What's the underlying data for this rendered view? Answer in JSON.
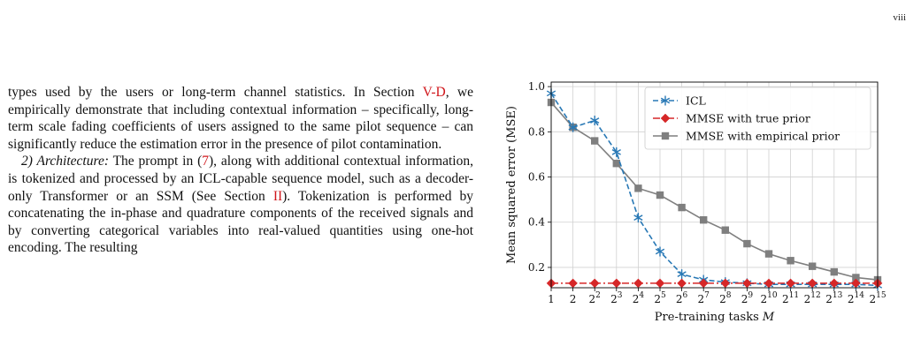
{
  "page_number": "viii",
  "body": {
    "para1": {
      "before": "types used by the users or long-term channel statistics. In Section ",
      "ref": "V-D",
      "after": ", we empirically demonstrate that including contextual information – specifically, long-term scale fading coefficients of users assigned to the same pilot sequence – can significantly reduce the estimation error in the presence of pilot contamination."
    },
    "para2": {
      "heading": "2) Architecture:",
      "text1": " The prompt in (",
      "ref1": "7",
      "text2": "), along with additional contextual information, is tokenized and processed by an ICL-capable sequence model, such as a decoder-only Transformer or an SSM (See Section ",
      "ref2": "II",
      "text3": "). Tokenization is performed by concatenating the in-phase and quadrature components of the received signals and by converting categorical variables into real-valued quantities using one-hot encoding. The resulting"
    }
  },
  "chart_data": {
    "type": "line",
    "x_tick_labels": [
      {
        "base": "1",
        "exp": ""
      },
      {
        "base": "2",
        "exp": ""
      },
      {
        "base": "2",
        "exp": "2"
      },
      {
        "base": "2",
        "exp": "3"
      },
      {
        "base": "2",
        "exp": "4"
      },
      {
        "base": "2",
        "exp": "5"
      },
      {
        "base": "2",
        "exp": "6"
      },
      {
        "base": "2",
        "exp": "7"
      },
      {
        "base": "2",
        "exp": "8"
      },
      {
        "base": "2",
        "exp": "9"
      },
      {
        "base": "2",
        "exp": "10"
      },
      {
        "base": "2",
        "exp": "11"
      },
      {
        "base": "2",
        "exp": "12"
      },
      {
        "base": "2",
        "exp": "13"
      },
      {
        "base": "2",
        "exp": "14"
      },
      {
        "base": "2",
        "exp": "15"
      }
    ],
    "x_log2": [
      0,
      1,
      2,
      3,
      4,
      5,
      6,
      7,
      8,
      9,
      10,
      11,
      12,
      13,
      14,
      15
    ],
    "y_ticks": [
      0.2,
      0.4,
      0.6,
      0.8,
      1.0
    ],
    "y_tick_labels": [
      "0.2",
      "0.4",
      "0.6",
      "0.8",
      "1.0"
    ],
    "ylim": [
      0.11,
      1.02
    ],
    "xlabel": "Pre-training tasks M",
    "xlabel_prefix": "Pre-training tasks ",
    "xlabel_var": "M",
    "ylabel": "Mean squared error (MSE)",
    "grid": true,
    "legend_position": "top-right",
    "series": [
      {
        "name": "ICL",
        "color": "#2878b5",
        "linestyle": "dashed",
        "marker": "star",
        "values": [
          0.97,
          0.82,
          0.85,
          0.71,
          0.42,
          0.27,
          0.17,
          0.145,
          0.135,
          0.13,
          0.125,
          0.125,
          0.125,
          0.125,
          0.125,
          0.12
        ]
      },
      {
        "name": "MMSE with true prior",
        "color": "#d62728",
        "linestyle": "dashdot",
        "marker": "diamond",
        "values": [
          0.13,
          0.13,
          0.13,
          0.13,
          0.13,
          0.13,
          0.13,
          0.13,
          0.13,
          0.13,
          0.13,
          0.13,
          0.13,
          0.13,
          0.13,
          0.13
        ]
      },
      {
        "name": "MMSE with empirical prior",
        "color": "#7f7f7f",
        "linestyle": "solid",
        "marker": "square",
        "values": [
          0.93,
          0.82,
          0.76,
          0.66,
          0.55,
          0.52,
          0.465,
          0.41,
          0.365,
          0.305,
          0.26,
          0.23,
          0.205,
          0.18,
          0.155,
          0.145
        ]
      }
    ]
  }
}
